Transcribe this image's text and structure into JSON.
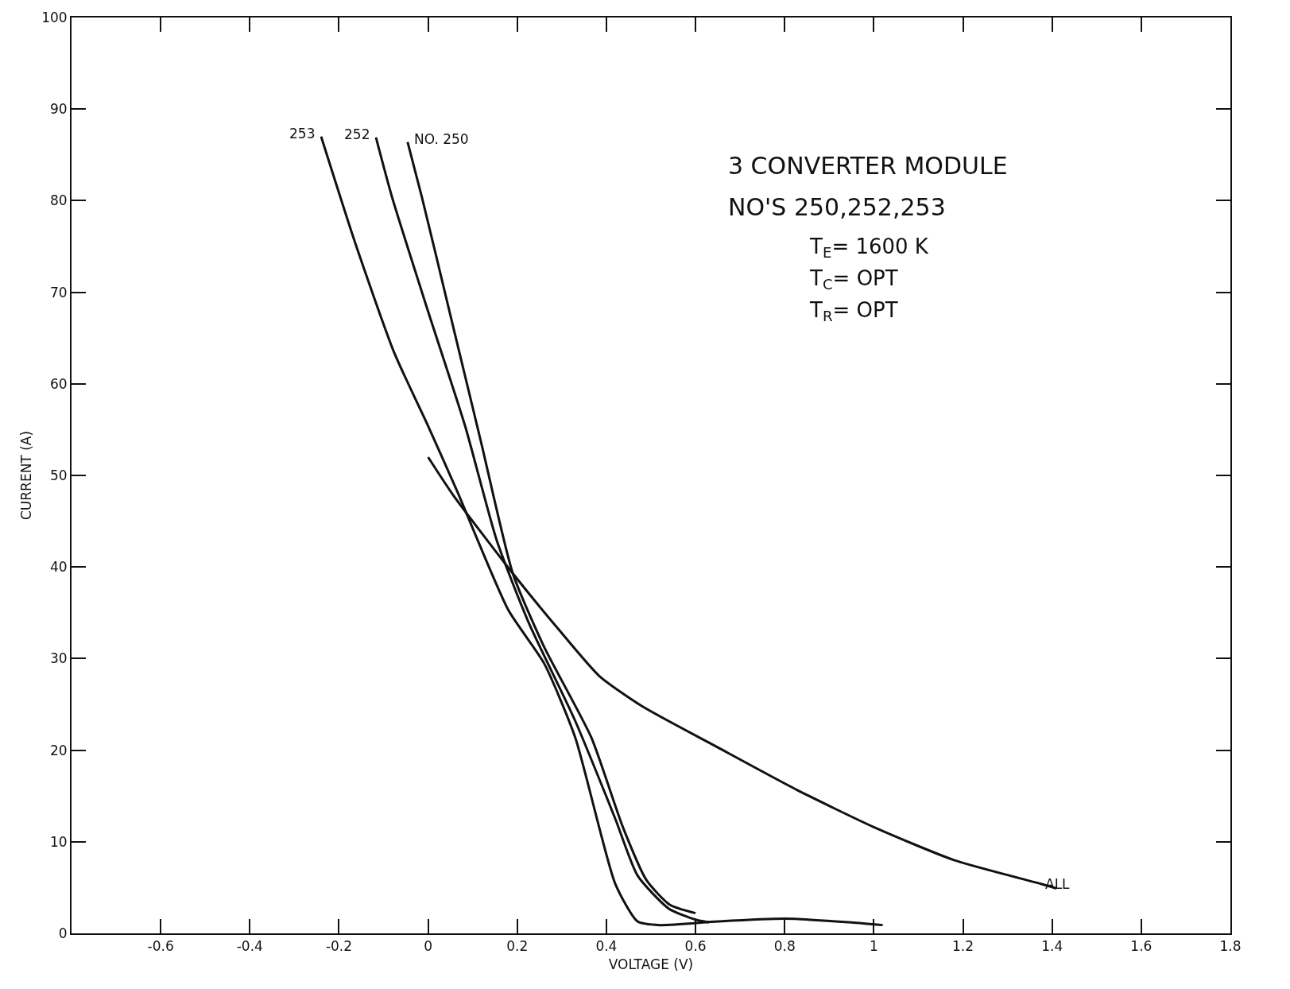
{
  "chart_data": {
    "type": "line",
    "xlabel": "VOLTAGE (V)",
    "ylabel": "CURRENT (A)",
    "annotations": [
      "3 CONVERTER MODULE",
      "NO'S 250,252,253",
      "T$_{E}$= 1600 K",
      "T$_{C}$= OPT",
      "T$_{R}$= OPT"
    ],
    "series": [
      {
        "name": "NO. 250",
        "color": "#111111",
        "x": [
          -0.046,
          -0.014,
          0.048,
          0.119,
          0.19,
          0.26,
          0.366,
          0.437,
          0.49,
          0.543,
          0.6
        ],
        "values": [
          86.4,
          80.4,
          67.9,
          53.6,
          39.3,
          31.3,
          21.4,
          11.6,
          5.8,
          3.1,
          2.2
        ]
      },
      {
        "name": "252",
        "color": "#111111",
        "x": [
          -0.117,
          -0.081,
          0,
          0.083,
          0.154,
          0.225,
          0.33,
          0.42,
          0.47,
          0.54,
          0.6,
          0.63
        ],
        "values": [
          86.9,
          80.4,
          67.9,
          55.4,
          42.9,
          34,
          23.2,
          12.5,
          6.3,
          2.7,
          1.5,
          1.2
        ]
      },
      {
        "name": "253",
        "color": "#111111",
        "x": [
          -0.24,
          -0.163,
          -0.076,
          0,
          0.065,
          0.18,
          0.26,
          0.33,
          0.42,
          0.47,
          0.52,
          0.65,
          0.8,
          0.95,
          1.02
        ],
        "values": [
          87,
          75.3,
          63.4,
          55.4,
          48.3,
          35.3,
          29.5,
          21.4,
          5.4,
          1.3,
          0.9,
          1.3,
          1.6,
          1.2,
          0.9
        ]
      },
      {
        "name": "ALL",
        "color": "#111111",
        "x": [
          0,
          0.057,
          0.19,
          0.296,
          0.384,
          0.48,
          0.65,
          0.83,
          1.0,
          1.18,
          1.375,
          1.41
        ],
        "values": [
          52,
          47.8,
          39.3,
          33,
          28.1,
          24.8,
          20.3,
          15.6,
          11.6,
          8,
          5.4,
          4.9
        ]
      }
    ],
    "xlim": [
      -0.8,
      1.8
    ],
    "xticks": [
      -0.6,
      -0.4,
      -0.2,
      0,
      0.2,
      0.4,
      0.6,
      0.8,
      1.0,
      1.2,
      1.4,
      1.6,
      1.8
    ],
    "ylim": [
      0,
      100
    ],
    "yticks": [
      0,
      10,
      20,
      30,
      40,
      50,
      60,
      70,
      80,
      90,
      100
    ],
    "grid": false,
    "legend": false,
    "marker": "none",
    "line_style": "solid"
  }
}
